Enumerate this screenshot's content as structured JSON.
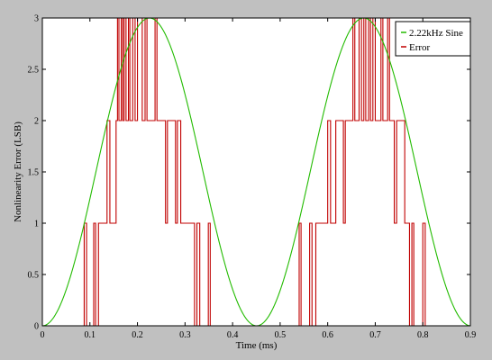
{
  "chart_data": {
    "type": "line",
    "xlabel": "Time (ms)",
    "ylabel": "Nonlinearity Error (LSB)",
    "xlim": [
      0,
      0.9
    ],
    "ylim": [
      0,
      3
    ],
    "xticks": [
      "0",
      "0.1",
      "0.2",
      "0.3",
      "0.4",
      "0.5",
      "0.6",
      "0.7",
      "0.8",
      "0.9"
    ],
    "yticks": [
      "0",
      "0.5",
      "1",
      "1.5",
      "2",
      "2.5",
      "3"
    ],
    "legend_position": "top-right",
    "grid": false,
    "series": [
      {
        "name": "2.22kHz Sine",
        "color": "#22bb00",
        "style": "line",
        "frequency_khz": 2.22,
        "amplitude": 1.5,
        "offset": 1.5,
        "x_min_at": 0
      },
      {
        "name": "Error",
        "color": "#c00000",
        "style": "step",
        "points": [
          [
            0,
            0
          ],
          [
            0.088,
            0
          ],
          [
            0.088,
            1
          ],
          [
            0.093,
            1
          ],
          [
            0.093,
            0
          ],
          [
            0.108,
            0
          ],
          [
            0.108,
            1
          ],
          [
            0.112,
            1
          ],
          [
            0.112,
            0
          ],
          [
            0.118,
            0
          ],
          [
            0.118,
            1
          ],
          [
            0.136,
            1
          ],
          [
            0.136,
            2
          ],
          [
            0.142,
            2
          ],
          [
            0.142,
            1
          ],
          [
            0.155,
            1
          ],
          [
            0.155,
            2
          ],
          [
            0.158,
            2
          ],
          [
            0.158,
            3
          ],
          [
            0.161,
            3
          ],
          [
            0.161,
            2
          ],
          [
            0.166,
            2
          ],
          [
            0.166,
            3
          ],
          [
            0.169,
            3
          ],
          [
            0.169,
            2
          ],
          [
            0.172,
            2
          ],
          [
            0.172,
            3
          ],
          [
            0.176,
            3
          ],
          [
            0.176,
            2
          ],
          [
            0.181,
            2
          ],
          [
            0.181,
            3
          ],
          [
            0.184,
            3
          ],
          [
            0.184,
            2
          ],
          [
            0.19,
            2
          ],
          [
            0.19,
            3
          ],
          [
            0.195,
            3
          ],
          [
            0.195,
            2
          ],
          [
            0.2,
            2
          ],
          [
            0.2,
            3
          ],
          [
            0.21,
            3
          ],
          [
            0.21,
            2
          ],
          [
            0.216,
            2
          ],
          [
            0.216,
            3
          ],
          [
            0.22,
            3
          ],
          [
            0.22,
            2
          ],
          [
            0.237,
            2
          ],
          [
            0.237,
            3
          ],
          [
            0.241,
            3
          ],
          [
            0.241,
            2
          ],
          [
            0.259,
            2
          ],
          [
            0.259,
            1
          ],
          [
            0.263,
            1
          ],
          [
            0.263,
            2
          ],
          [
            0.28,
            2
          ],
          [
            0.28,
            1
          ],
          [
            0.284,
            1
          ],
          [
            0.284,
            2
          ],
          [
            0.291,
            2
          ],
          [
            0.291,
            1
          ],
          [
            0.32,
            1
          ],
          [
            0.32,
            0
          ],
          [
            0.325,
            0
          ],
          [
            0.325,
            1
          ],
          [
            0.331,
            1
          ],
          [
            0.331,
            0
          ],
          [
            0.349,
            0
          ],
          [
            0.349,
            1
          ],
          [
            0.353,
            1
          ],
          [
            0.353,
            0
          ],
          [
            0.54,
            0
          ],
          [
            0.54,
            1
          ],
          [
            0.544,
            1
          ],
          [
            0.544,
            0
          ],
          [
            0.562,
            0
          ],
          [
            0.562,
            1
          ],
          [
            0.567,
            1
          ],
          [
            0.567,
            0
          ],
          [
            0.575,
            0
          ],
          [
            0.575,
            1
          ],
          [
            0.6,
            1
          ],
          [
            0.6,
            2
          ],
          [
            0.606,
            2
          ],
          [
            0.606,
            1
          ],
          [
            0.617,
            1
          ],
          [
            0.617,
            2
          ],
          [
            0.633,
            2
          ],
          [
            0.633,
            1
          ],
          [
            0.637,
            1
          ],
          [
            0.637,
            2
          ],
          [
            0.653,
            2
          ],
          [
            0.653,
            3
          ],
          [
            0.657,
            3
          ],
          [
            0.657,
            2
          ],
          [
            0.666,
            2
          ],
          [
            0.666,
            3
          ],
          [
            0.671,
            3
          ],
          [
            0.671,
            2
          ],
          [
            0.676,
            2
          ],
          [
            0.676,
            3
          ],
          [
            0.68,
            3
          ],
          [
            0.68,
            2
          ],
          [
            0.686,
            2
          ],
          [
            0.686,
            3
          ],
          [
            0.69,
            3
          ],
          [
            0.69,
            2
          ],
          [
            0.695,
            2
          ],
          [
            0.695,
            3
          ],
          [
            0.7,
            3
          ],
          [
            0.7,
            2
          ],
          [
            0.712,
            2
          ],
          [
            0.712,
            3
          ],
          [
            0.716,
            3
          ],
          [
            0.716,
            2
          ],
          [
            0.726,
            2
          ],
          [
            0.726,
            3
          ],
          [
            0.73,
            3
          ],
          [
            0.73,
            2
          ],
          [
            0.74,
            2
          ],
          [
            0.74,
            1
          ],
          [
            0.745,
            1
          ],
          [
            0.745,
            2
          ],
          [
            0.762,
            2
          ],
          [
            0.762,
            1
          ],
          [
            0.772,
            1
          ],
          [
            0.772,
            0
          ],
          [
            0.777,
            0
          ],
          [
            0.777,
            1
          ],
          [
            0.781,
            1
          ],
          [
            0.781,
            0
          ],
          [
            0.8,
            0
          ],
          [
            0.8,
            1
          ],
          [
            0.805,
            1
          ],
          [
            0.805,
            0
          ],
          [
            0.9,
            0
          ]
        ]
      }
    ]
  }
}
